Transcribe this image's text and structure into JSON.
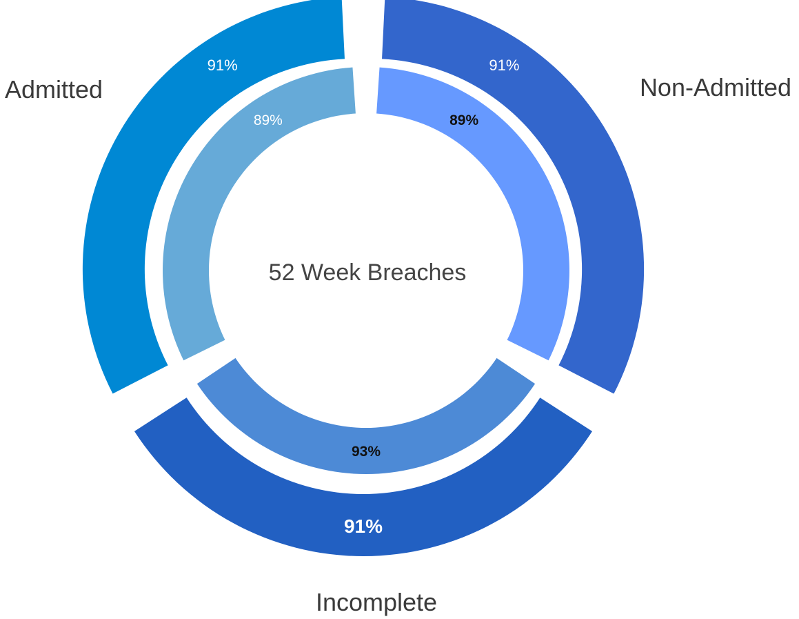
{
  "chart_data": {
    "type": "donut",
    "title": "52 Week Breaches",
    "categories": [
      "Admitted",
      "Non-Admitted",
      "Incomplete"
    ],
    "series": [
      {
        "ring": "outer",
        "values": [
          91,
          91,
          91
        ],
        "labels": [
          "91%",
          "91%",
          "91%"
        ],
        "colors": [
          "#0088d4",
          "#3366cc",
          "#2260c2"
        ],
        "label_colors": [
          "#ffffff",
          "#ffffff",
          "#ffffff"
        ]
      },
      {
        "ring": "inner",
        "values": [
          89,
          89,
          93
        ],
        "labels": [
          "89%",
          "89%",
          "93%"
        ],
        "colors": [
          "#66aad8",
          "#6699ff",
          "#4d8ad6"
        ],
        "label_colors": [
          "#ffffff",
          "#111111",
          "#111111"
        ]
      }
    ],
    "legend": "none"
  }
}
